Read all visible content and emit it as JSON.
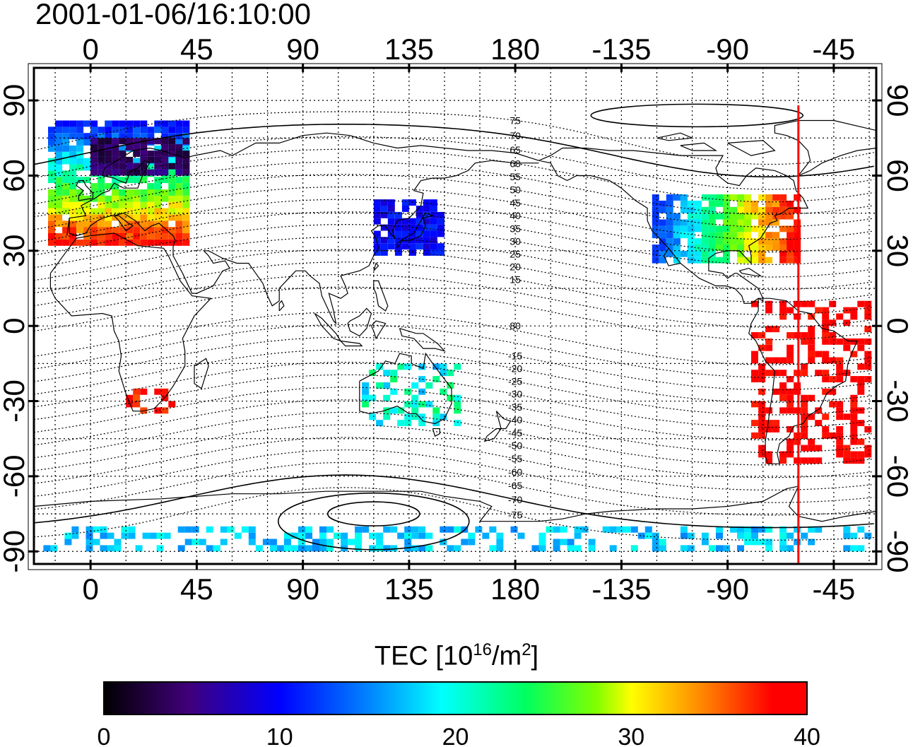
{
  "header": {
    "timestamp": "2001-01-06/16:10:00"
  },
  "map": {
    "projection": "equirectangular",
    "lon_center": 180,
    "lon_ticks_labels": [
      "0",
      "45",
      "90",
      "135",
      "180",
      "-135",
      "-90",
      "-45"
    ],
    "lon_ticks_values": [
      0,
      45,
      90,
      135,
      180,
      225,
      270,
      315
    ],
    "lat_ticks_labels": [
      "90",
      "60",
      "30",
      "0",
      "-30",
      "-60",
      "-90"
    ],
    "lat_ticks_values": [
      90,
      60,
      30,
      0,
      -30,
      -60,
      -90
    ],
    "lon_range": [
      -24,
      333
    ],
    "lat_range": [
      -95,
      103
    ],
    "grid": "dotted 15deg",
    "terminator_line": {
      "color": "#ff0000",
      "lon": 300
    },
    "magnetic_latitude_labels": [
      "80",
      "75",
      "70",
      "65",
      "60",
      "55",
      "50",
      "45",
      "40",
      "35",
      "30",
      "25",
      "20",
      "15",
      "-15",
      "-20",
      "-25",
      "-30",
      "-35",
      "-40",
      "-45",
      "-50",
      "-55",
      "-60",
      "-65",
      "-70",
      "-75"
    ],
    "magnetic_latitude_label_lats": [
      80,
      75,
      70,
      65,
      60,
      55,
      50,
      45,
      40,
      35,
      30,
      25,
      20,
      15,
      -15,
      -20,
      -25,
      -30,
      -35,
      -40,
      -45,
      -50,
      -55,
      -60,
      -65,
      -70,
      -75
    ]
  },
  "colorbar": {
    "title_main": "TEC  [10",
    "title_sup1": "16",
    "title_mid": "/m",
    "title_sup2": "2",
    "title_end": "]",
    "min": 0,
    "max": 40,
    "tick_labels": [
      "0",
      "10",
      "20",
      "30",
      "40"
    ],
    "tick_values": [
      0,
      10,
      20,
      30,
      40
    ]
  },
  "tec_regions": [
    {
      "region": "europe",
      "lon": [
        -18,
        40
      ],
      "lat": [
        32,
        80
      ],
      "tec": [
        10,
        38
      ]
    },
    {
      "region": "scandinavia",
      "lon": [
        0,
        40
      ],
      "lat": [
        60,
        75
      ],
      "tec": [
        2,
        6
      ]
    },
    {
      "region": "east-asia",
      "lon": [
        120,
        150
      ],
      "lat": [
        28,
        50
      ],
      "tec": [
        8,
        12
      ]
    },
    {
      "region": "north-america",
      "lon": [
        238,
        300
      ],
      "lat": [
        25,
        52
      ],
      "tec": [
        12,
        40
      ]
    },
    {
      "region": "south-america",
      "lon": [
        280,
        330
      ],
      "lat": [
        -55,
        10
      ],
      "tec": [
        37,
        40
      ]
    },
    {
      "region": "south-africa",
      "lon": [
        15,
        35
      ],
      "lat": [
        -35,
        -25
      ],
      "tec": [
        35,
        40
      ]
    },
    {
      "region": "australia",
      "lon": [
        115,
        155
      ],
      "lat": [
        -40,
        -15
      ],
      "tec": [
        16,
        24
      ]
    },
    {
      "region": "antarctica",
      "lon": [
        -20,
        330
      ],
      "lat": [
        -90,
        -80
      ],
      "tec": [
        15,
        20
      ]
    }
  ]
}
